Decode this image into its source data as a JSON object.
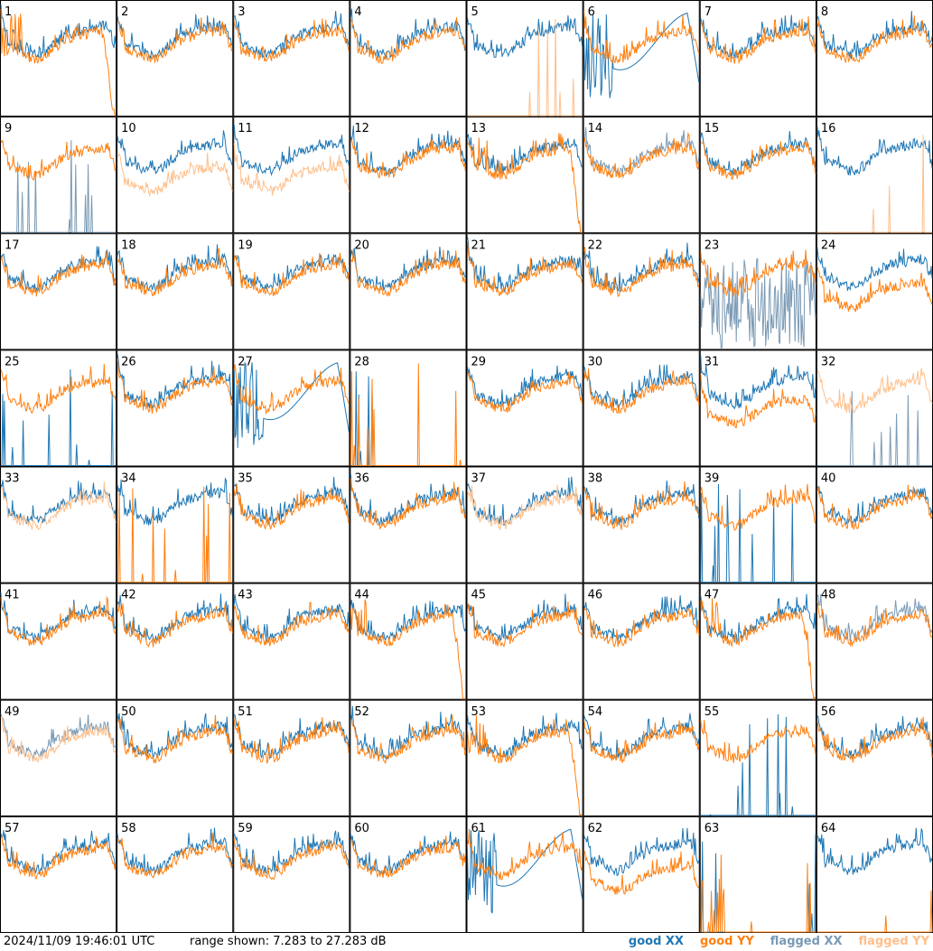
{
  "footer": {
    "timestamp": "2024/11/09 19:46:01 UTC",
    "range": "range shown: 7.283 to 27.283 dB"
  },
  "legend": [
    {
      "label": "good XX",
      "color": "#1f77b4"
    },
    {
      "label": "good YY",
      "color": "#ff7f0e"
    },
    {
      "label": "flagged XX",
      "color": "#7a9ab5"
    },
    {
      "label": "flagged YY",
      "color": "#ffbf8a"
    }
  ],
  "chart_data": {
    "type": "line",
    "title": "",
    "ylim": [
      7.283,
      27.283
    ],
    "yunit": "dB",
    "grid_rows": 8,
    "grid_cols": 8,
    "panels": [
      {
        "label": "1",
        "xx": "good",
        "yy": "good",
        "profile": "yy_dropout"
      },
      {
        "label": "2",
        "xx": "good",
        "yy": "good",
        "profile": "normal"
      },
      {
        "label": "3",
        "xx": "good",
        "yy": "good",
        "profile": "normal"
      },
      {
        "label": "4",
        "xx": "good",
        "yy": "good",
        "profile": "normal"
      },
      {
        "label": "5",
        "xx": "good",
        "yy": "flagged",
        "profile": "yy_spikes"
      },
      {
        "label": "6",
        "xx": "good",
        "yy": "good",
        "profile": "xx_dropout"
      },
      {
        "label": "7",
        "xx": "good",
        "yy": "good",
        "profile": "normal"
      },
      {
        "label": "8",
        "xx": "good",
        "yy": "good",
        "profile": "normal"
      },
      {
        "label": "9",
        "xx": "flagged",
        "yy": "good",
        "profile": "xx_spikes"
      },
      {
        "label": "10",
        "xx": "good",
        "yy": "flagged",
        "profile": "yy_low"
      },
      {
        "label": "11",
        "xx": "good",
        "yy": "flagged",
        "profile": "yy_low"
      },
      {
        "label": "12",
        "xx": "good",
        "yy": "good",
        "profile": "normal"
      },
      {
        "label": "13",
        "xx": "good",
        "yy": "good",
        "profile": "yy_dropout"
      },
      {
        "label": "14",
        "xx": "flagged",
        "yy": "good",
        "profile": "normal"
      },
      {
        "label": "15",
        "xx": "good",
        "yy": "good",
        "profile": "normal"
      },
      {
        "label": "16",
        "xx": "good",
        "yy": "flagged",
        "profile": "yy_spikes"
      },
      {
        "label": "17",
        "xx": "good",
        "yy": "good",
        "profile": "normal"
      },
      {
        "label": "18",
        "xx": "good",
        "yy": "good",
        "profile": "normal"
      },
      {
        "label": "19",
        "xx": "good",
        "yy": "good",
        "profile": "normal"
      },
      {
        "label": "20",
        "xx": "good",
        "yy": "good",
        "profile": "normal"
      },
      {
        "label": "21",
        "xx": "good",
        "yy": "good",
        "profile": "normal"
      },
      {
        "label": "22",
        "xx": "good",
        "yy": "good",
        "profile": "normal"
      },
      {
        "label": "23",
        "xx": "flagged",
        "yy": "good",
        "profile": "xx_noisy"
      },
      {
        "label": "24",
        "xx": "good",
        "yy": "good",
        "profile": "yy_low"
      },
      {
        "label": "25",
        "xx": "good",
        "yy": "good",
        "profile": "xx_spikes"
      },
      {
        "label": "26",
        "xx": "good",
        "yy": "good",
        "profile": "normal"
      },
      {
        "label": "27",
        "xx": "good",
        "yy": "good",
        "profile": "xx_dropout"
      },
      {
        "label": "28",
        "xx": "good",
        "yy": "good",
        "profile": "dead"
      },
      {
        "label": "29",
        "xx": "good",
        "yy": "good",
        "profile": "normal"
      },
      {
        "label": "30",
        "xx": "good",
        "yy": "good",
        "profile": "normal"
      },
      {
        "label": "31",
        "xx": "good",
        "yy": "good",
        "profile": "yy_low"
      },
      {
        "label": "32",
        "xx": "flagged",
        "yy": "flagged",
        "profile": "xx_spikes"
      },
      {
        "label": "33",
        "xx": "good",
        "yy": "flagged",
        "profile": "normal"
      },
      {
        "label": "34",
        "xx": "good",
        "yy": "good",
        "profile": "yy_spikes"
      },
      {
        "label": "35",
        "xx": "good",
        "yy": "good",
        "profile": "normal"
      },
      {
        "label": "36",
        "xx": "good",
        "yy": "good",
        "profile": "normal"
      },
      {
        "label": "37",
        "xx": "good",
        "yy": "flagged",
        "profile": "normal"
      },
      {
        "label": "38",
        "xx": "good",
        "yy": "good",
        "profile": "normal"
      },
      {
        "label": "39",
        "xx": "good",
        "yy": "good",
        "profile": "xx_spikes"
      },
      {
        "label": "40",
        "xx": "good",
        "yy": "good",
        "profile": "normal"
      },
      {
        "label": "41",
        "xx": "good",
        "yy": "good",
        "profile": "normal"
      },
      {
        "label": "42",
        "xx": "good",
        "yy": "good",
        "profile": "normal"
      },
      {
        "label": "43",
        "xx": "good",
        "yy": "good",
        "profile": "normal"
      },
      {
        "label": "44",
        "xx": "good",
        "yy": "good",
        "profile": "yy_dropout"
      },
      {
        "label": "45",
        "xx": "good",
        "yy": "good",
        "profile": "normal"
      },
      {
        "label": "46",
        "xx": "good",
        "yy": "good",
        "profile": "normal"
      },
      {
        "label": "47",
        "xx": "good",
        "yy": "good",
        "profile": "yy_dropout"
      },
      {
        "label": "48",
        "xx": "flagged",
        "yy": "good",
        "profile": "normal"
      },
      {
        "label": "49",
        "xx": "flagged",
        "yy": "flagged",
        "profile": "normal"
      },
      {
        "label": "50",
        "xx": "good",
        "yy": "good",
        "profile": "normal"
      },
      {
        "label": "51",
        "xx": "good",
        "yy": "good",
        "profile": "normal"
      },
      {
        "label": "52",
        "xx": "good",
        "yy": "good",
        "profile": "normal"
      },
      {
        "label": "53",
        "xx": "good",
        "yy": "good",
        "profile": "yy_dropout"
      },
      {
        "label": "54",
        "xx": "good",
        "yy": "good",
        "profile": "normal"
      },
      {
        "label": "55",
        "xx": "good",
        "yy": "good",
        "profile": "xx_spikes"
      },
      {
        "label": "56",
        "xx": "good",
        "yy": "good",
        "profile": "normal"
      },
      {
        "label": "57",
        "xx": "good",
        "yy": "good",
        "profile": "normal"
      },
      {
        "label": "58",
        "xx": "good",
        "yy": "good",
        "profile": "normal"
      },
      {
        "label": "59",
        "xx": "good",
        "yy": "good",
        "profile": "normal"
      },
      {
        "label": "60",
        "xx": "good",
        "yy": "good",
        "profile": "normal"
      },
      {
        "label": "61",
        "xx": "good",
        "yy": "good",
        "profile": "xx_dropout"
      },
      {
        "label": "62",
        "xx": "good",
        "yy": "good",
        "profile": "yy_low"
      },
      {
        "label": "63",
        "xx": "good",
        "yy": "good",
        "profile": "dead"
      },
      {
        "label": "64",
        "xx": "good",
        "yy": "good",
        "profile": "yy_spikes"
      }
    ]
  }
}
